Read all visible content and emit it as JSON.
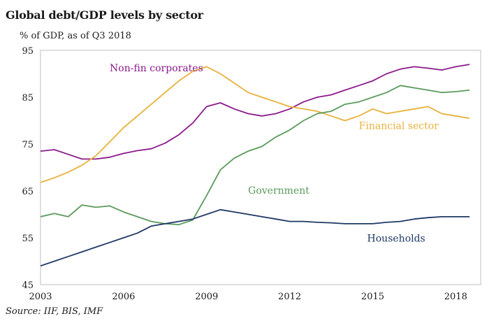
{
  "chart_data": {
    "type": "line",
    "title": "Global debt/GDP levels by sector",
    "subtitle": "% of GDP, as of Q3 2018",
    "source": "Source: IIF, BIS, IMF",
    "xlabel": "",
    "ylabel": "",
    "xlim": [
      2003,
      2018.9
    ],
    "ylim": [
      45,
      95
    ],
    "xticks": [
      2003,
      2006,
      2009,
      2012,
      2015,
      2018
    ],
    "yticks": [
      45,
      55,
      65,
      75,
      85,
      95
    ],
    "grid": false,
    "series": [
      {
        "name": "Non-fin corporates",
        "color": "#8b1a8b",
        "label_pos": [
          2005.5,
          90.5
        ],
        "x": [
          2003,
          2003.5,
          2004,
          2004.5,
          2005,
          2005.5,
          2006,
          2006.5,
          2007,
          2007.5,
          2008,
          2008.5,
          2009,
          2009.5,
          2010,
          2010.5,
          2011,
          2011.5,
          2012,
          2012.5,
          2013,
          2013.5,
          2014,
          2014.5,
          2015,
          2015.5,
          2016,
          2016.5,
          2017,
          2017.5,
          2018,
          2018.5
        ],
        "values": [
          73.5,
          73.8,
          72.8,
          71.8,
          71.8,
          72.2,
          73.0,
          73.6,
          74.0,
          75.2,
          77.0,
          79.5,
          83.0,
          83.8,
          82.5,
          81.5,
          81.0,
          81.5,
          82.5,
          84.0,
          85.0,
          85.5,
          86.5,
          87.5,
          88.5,
          90.0,
          91.0,
          91.5,
          91.2,
          90.8,
          91.5,
          92.0
        ]
      },
      {
        "name": "Financial sector",
        "color": "#e8b13b",
        "label_pos": [
          2014.5,
          78.2
        ],
        "x": [
          2003,
          2003.5,
          2004,
          2004.5,
          2005,
          2005.5,
          2006,
          2006.5,
          2007,
          2007.5,
          2008,
          2008.5,
          2009,
          2009.5,
          2010,
          2010.5,
          2011,
          2011.5,
          2012,
          2012.5,
          2013,
          2013.5,
          2014,
          2014.5,
          2015,
          2015.5,
          2016,
          2016.5,
          2017,
          2017.5,
          2018,
          2018.5
        ],
        "values": [
          66.8,
          67.8,
          69.0,
          70.5,
          72.5,
          75.5,
          78.5,
          81.0,
          83.5,
          86.0,
          88.5,
          90.5,
          91.5,
          90.0,
          88.0,
          86.0,
          85.0,
          84.0,
          83.0,
          82.5,
          82.0,
          81.0,
          80.0,
          81.0,
          82.5,
          81.5,
          82.0,
          82.5,
          83.0,
          81.5,
          81.0,
          80.5
        ]
      },
      {
        "name": "Government",
        "color": "#5a9a5a",
        "label_pos": [
          2010.5,
          64.4
        ],
        "x": [
          2003,
          2003.5,
          2004,
          2004.5,
          2005,
          2005.5,
          2006,
          2006.5,
          2007,
          2007.5,
          2008,
          2008.5,
          2009,
          2009.5,
          2010,
          2010.5,
          2011,
          2011.5,
          2012,
          2012.5,
          2013,
          2013.5,
          2014,
          2014.5,
          2015,
          2015.5,
          2016,
          2016.5,
          2017,
          2017.5,
          2018,
          2018.5
        ],
        "values": [
          59.5,
          60.2,
          59.5,
          62.0,
          61.5,
          61.8,
          60.5,
          59.5,
          58.5,
          58.0,
          57.8,
          58.8,
          64.0,
          69.5,
          72.0,
          73.5,
          74.5,
          76.5,
          78.0,
          80.0,
          81.5,
          82.0,
          83.5,
          84.0,
          85.0,
          86.0,
          87.5,
          87.0,
          86.5,
          86.0,
          86.2,
          86.5
        ]
      },
      {
        "name": "Households",
        "color": "#1f3864",
        "label_pos": [
          2014.8,
          54.2
        ],
        "x": [
          2003,
          2003.5,
          2004,
          2004.5,
          2005,
          2005.5,
          2006,
          2006.5,
          2007,
          2007.5,
          2008,
          2008.5,
          2009,
          2009.5,
          2010,
          2010.5,
          2011,
          2011.5,
          2012,
          2012.5,
          2013,
          2013.5,
          2014,
          2014.5,
          2015,
          2015.5,
          2016,
          2016.5,
          2017,
          2017.5,
          2018,
          2018.5
        ],
        "values": [
          49.0,
          50.0,
          51.0,
          52.0,
          53.0,
          54.0,
          55.0,
          56.0,
          57.5,
          58.0,
          58.5,
          59.0,
          60.0,
          61.0,
          60.5,
          60.0,
          59.5,
          59.0,
          58.5,
          58.5,
          58.3,
          58.2,
          58.0,
          58.0,
          58.0,
          58.3,
          58.5,
          59.0,
          59.3,
          59.5,
          59.5,
          59.5
        ]
      }
    ]
  }
}
